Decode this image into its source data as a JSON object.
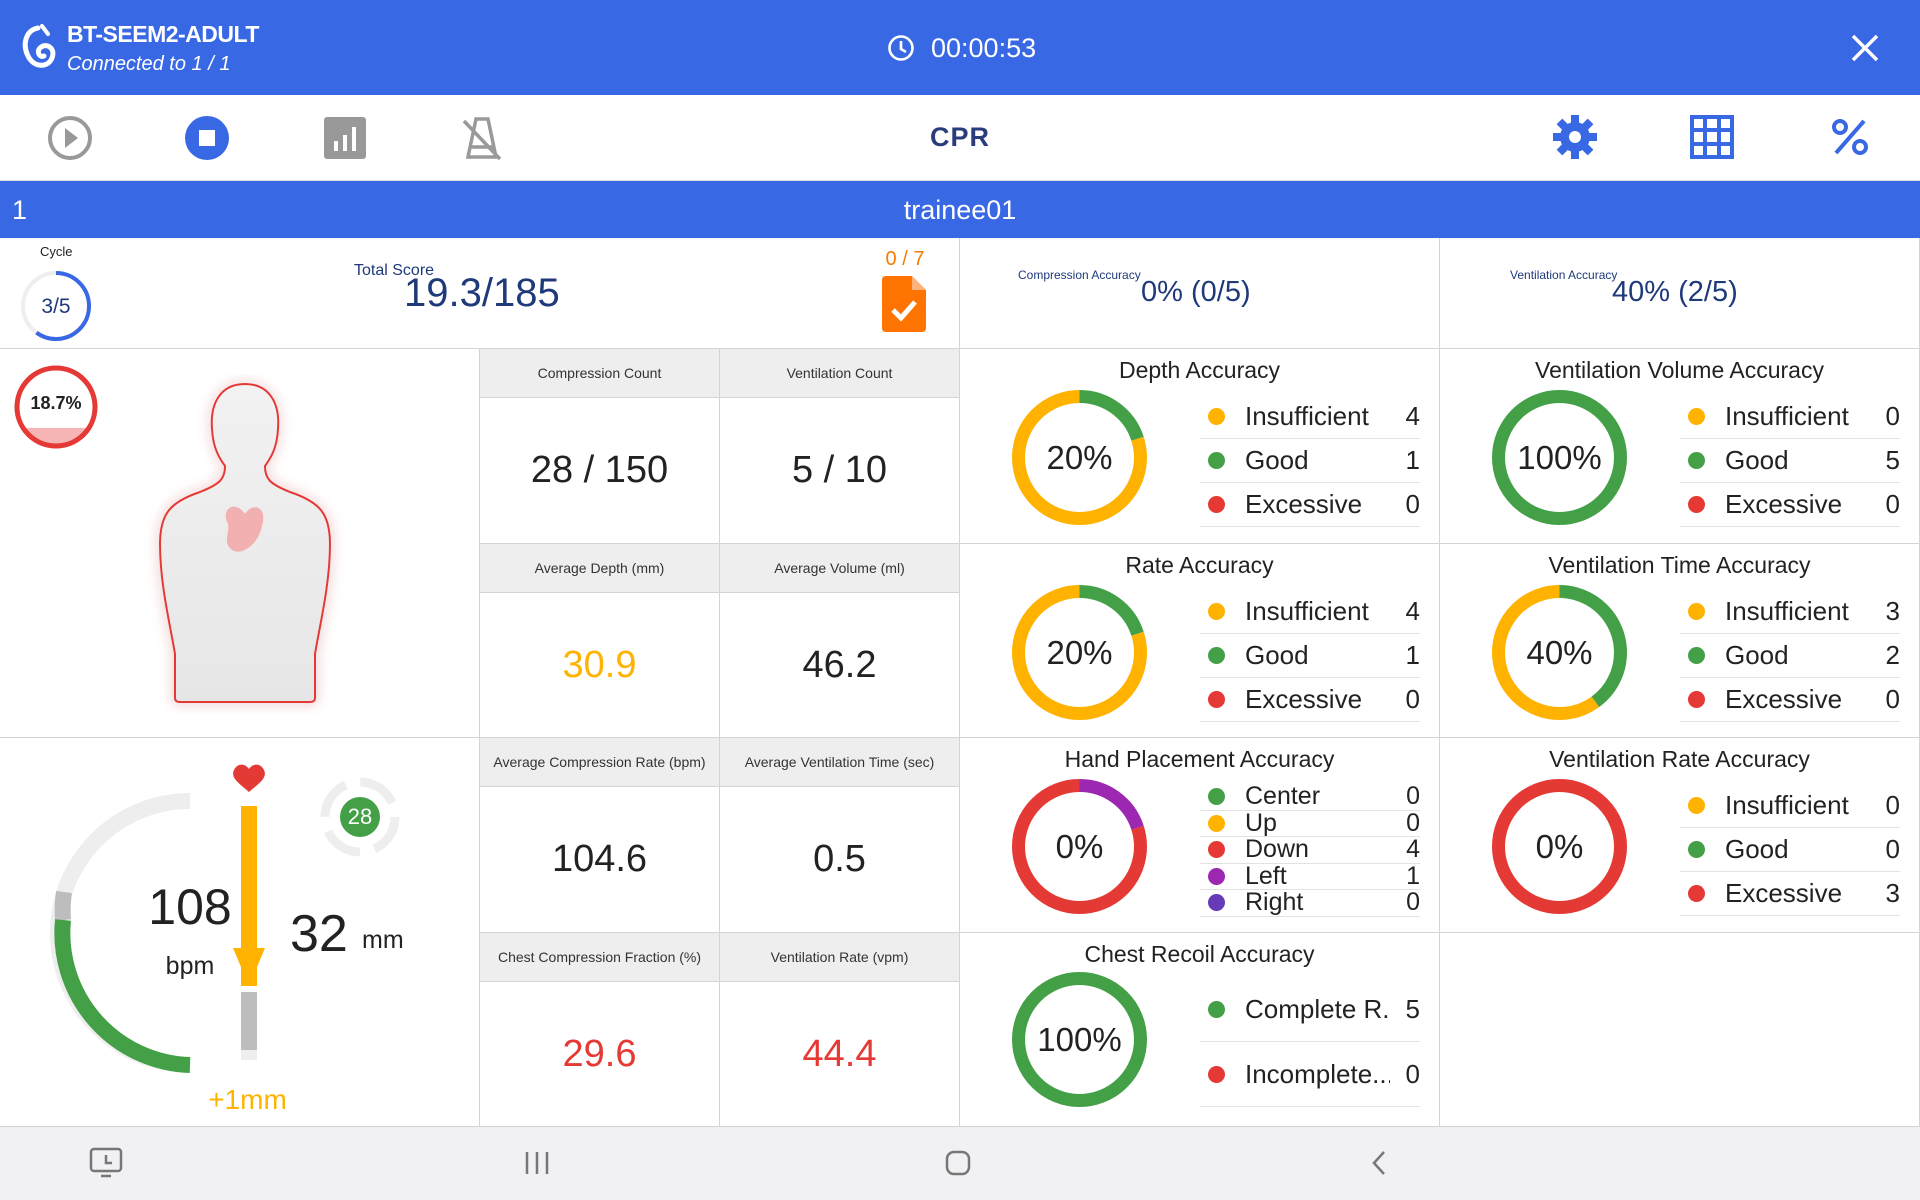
{
  "header": {
    "device": "BT-SEEM2-ADULT",
    "connection": "Connected to 1 / 1",
    "timer": "00:00:53"
  },
  "toolbar": {
    "mode": "CPR"
  },
  "trainee": {
    "index": "1",
    "name": "trainee01"
  },
  "score": {
    "cycle_label": "Cycle",
    "cycle": "3/5",
    "cycle_fraction": 0.6,
    "total_label": "Total Score",
    "total": "19.3/185",
    "report_count": "0 / 7",
    "comp_acc_label": "Compression Accuracy",
    "comp_acc": "0% (0/5)",
    "vent_acc_label": "Ventilation Accuracy",
    "vent_acc": "40% (2/5)"
  },
  "body": {
    "percent": "18.7%",
    "fraction": 0.187
  },
  "stats": [
    {
      "label": "Compression Count",
      "value": "28 / 150",
      "color": "#222222"
    },
    {
      "label": "Ventilation Count",
      "value": "5 / 10",
      "color": "#222222"
    },
    {
      "label": "Average Depth (mm)",
      "value": "30.9",
      "color": "#ffb300"
    },
    {
      "label": "Average Volume (ml)",
      "value": "46.2",
      "color": "#222222"
    },
    {
      "label": "Average Compression Rate (bpm)",
      "value": "104.6",
      "color": "#222222"
    },
    {
      "label": "Average Ventilation Time (sec)",
      "value": "0.5",
      "color": "#222222"
    },
    {
      "label": "Chest Compression Fraction (%)",
      "value": "29.6",
      "color": "#e53935"
    },
    {
      "label": "Ventilation Rate (vpm)",
      "value": "44.4",
      "color": "#e53935"
    }
  ],
  "gauge": {
    "rate": "108",
    "rate_unit": "bpm",
    "depth": "32",
    "depth_unit": "mm",
    "offset": "+1mm",
    "count": "28"
  },
  "colors": {
    "yellow": "#ffb300",
    "green": "#43a047",
    "red": "#e53935",
    "purple": "#9c27b0",
    "violet": "#673ab7",
    "blue": "#3868e3"
  },
  "panels": [
    {
      "title": "Depth Accuracy",
      "percent": "20%",
      "items": [
        {
          "label": "Insufficient",
          "count": "4",
          "color": "#ffb300"
        },
        {
          "label": "Good",
          "count": "1",
          "color": "#43a047"
        },
        {
          "label": "Excessive",
          "count": "0",
          "color": "#e53935"
        }
      ]
    },
    {
      "title": "Ventilation Volume Accuracy",
      "percent": "100%",
      "items": [
        {
          "label": "Insufficient",
          "count": "0",
          "color": "#ffb300"
        },
        {
          "label": "Good",
          "count": "5",
          "color": "#43a047"
        },
        {
          "label": "Excessive",
          "count": "0",
          "color": "#e53935"
        }
      ]
    },
    {
      "title": "Rate Accuracy",
      "percent": "20%",
      "items": [
        {
          "label": "Insufficient",
          "count": "4",
          "color": "#ffb300"
        },
        {
          "label": "Good",
          "count": "1",
          "color": "#43a047"
        },
        {
          "label": "Excessive",
          "count": "0",
          "color": "#e53935"
        }
      ]
    },
    {
      "title": "Ventilation Time Accuracy",
      "percent": "40%",
      "items": [
        {
          "label": "Insufficient",
          "count": "3",
          "color": "#ffb300"
        },
        {
          "label": "Good",
          "count": "2",
          "color": "#43a047"
        },
        {
          "label": "Excessive",
          "count": "0",
          "color": "#e53935"
        }
      ]
    },
    {
      "title": "Hand Placement Accuracy",
      "percent": "0%",
      "items": [
        {
          "label": "Center",
          "count": "0",
          "color": "#43a047"
        },
        {
          "label": "Up",
          "count": "0",
          "color": "#ffb300"
        },
        {
          "label": "Down",
          "count": "4",
          "color": "#e53935"
        },
        {
          "label": "Left",
          "count": "1",
          "color": "#9c27b0"
        },
        {
          "label": "Right",
          "count": "0",
          "color": "#673ab7"
        }
      ]
    },
    {
      "title": "Ventilation Rate Accuracy",
      "percent": "0%",
      "items": [
        {
          "label": "Insufficient",
          "count": "0",
          "color": "#ffb300"
        },
        {
          "label": "Good",
          "count": "0",
          "color": "#43a047"
        },
        {
          "label": "Excessive",
          "count": "3",
          "color": "#e53935"
        }
      ]
    },
    {
      "title": "Chest Recoil Accuracy",
      "percent": "100%",
      "items": [
        {
          "label": "Complete R...",
          "count": "5",
          "color": "#43a047"
        },
        {
          "label": "Incomplete...",
          "count": "0",
          "color": "#e53935"
        }
      ]
    }
  ]
}
